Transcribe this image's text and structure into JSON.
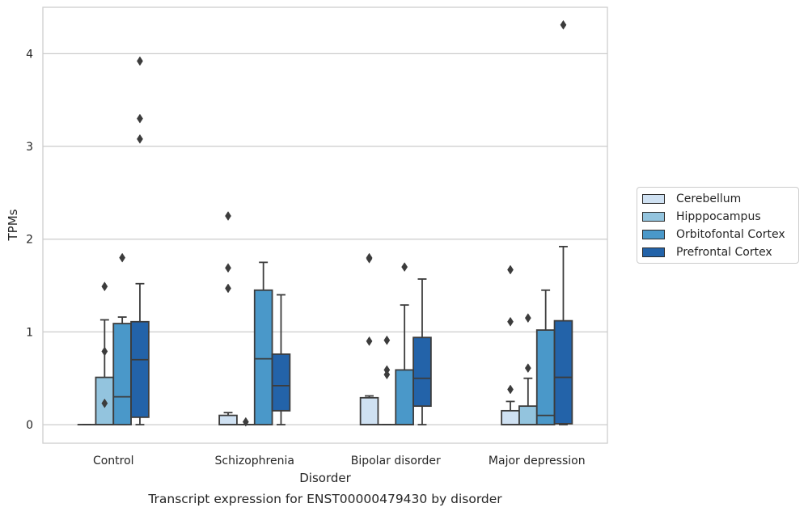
{
  "chart_data": {
    "type": "box",
    "title": "Transcript expression for ENST00000479430 by disorder",
    "xlabel": "Disorder",
    "ylabel": "TPMs",
    "ylim": [
      -0.2,
      4.5
    ],
    "yticks": [
      0,
      1,
      2,
      3,
      4
    ],
    "grid": "horizontal",
    "legend_position": "right",
    "categories": [
      "Control",
      "Schizophrenia",
      "Bipolar disorder",
      "Major depression"
    ],
    "series": [
      {
        "name": "Cerebellum",
        "color": "#cfe1f2",
        "boxes": [
          {
            "q1": 0,
            "median": 0,
            "q3": 0,
            "whisker_low": 0,
            "whisker_high": 0,
            "outliers": []
          },
          {
            "q1": 0,
            "median": 0,
            "q3": 0.1,
            "whisker_low": 0,
            "whisker_high": 0.13,
            "outliers": [
              2.25,
              1.69,
              1.47
            ]
          },
          {
            "q1": 0,
            "median": 0,
            "q3": 0.29,
            "whisker_low": 0,
            "whisker_high": 0.31,
            "outliers": [
              1.8,
              1.79,
              0.9
            ]
          },
          {
            "q1": 0,
            "median": 0,
            "q3": 0.15,
            "whisker_low": 0,
            "whisker_high": 0.25,
            "outliers": [
              1.67,
              1.11,
              0.38
            ]
          }
        ]
      },
      {
        "name": "Hipppocampus",
        "color": "#93c4de",
        "boxes": [
          {
            "q1": 0,
            "median": 0,
            "q3": 0.51,
            "whisker_low": 0,
            "whisker_high": 1.13,
            "outliers": [
              1.49,
              0.79,
              0.23
            ]
          },
          {
            "q1": 0,
            "median": 0,
            "q3": 0,
            "whisker_low": 0,
            "whisker_high": 0,
            "outliers": [
              0.03
            ]
          },
          {
            "q1": 0,
            "median": 0,
            "q3": 0,
            "whisker_low": 0,
            "whisker_high": 0,
            "outliers": [
              0.91,
              0.59,
              0.54
            ]
          },
          {
            "q1": 0,
            "median": 0,
            "q3": 0.2,
            "whisker_low": 0,
            "whisker_high": 0.5,
            "outliers": [
              1.15,
              0.61
            ]
          }
        ]
      },
      {
        "name": "Orbitofontal Cortex",
        "color": "#4a98c9",
        "boxes": [
          {
            "q1": 0,
            "median": 0.3,
            "q3": 1.09,
            "whisker_low": 0,
            "whisker_high": 1.16,
            "outliers": [
              1.8
            ]
          },
          {
            "q1": 0,
            "median": 0.71,
            "q3": 1.45,
            "whisker_low": 0,
            "whisker_high": 1.75,
            "outliers": []
          },
          {
            "q1": 0,
            "median": 0,
            "q3": 0.59,
            "whisker_low": 0,
            "whisker_high": 1.29,
            "outliers": [
              1.7
            ]
          },
          {
            "q1": 0,
            "median": 0.1,
            "q3": 1.02,
            "whisker_low": 0,
            "whisker_high": 1.45,
            "outliers": []
          }
        ]
      },
      {
        "name": "Prefrontal Cortex",
        "color": "#2363a9",
        "boxes": [
          {
            "q1": 0.08,
            "median": 0.7,
            "q3": 1.11,
            "whisker_low": 0,
            "whisker_high": 1.52,
            "outliers": [
              3.92,
              3.3,
              3.08
            ]
          },
          {
            "q1": 0.15,
            "median": 0.42,
            "q3": 0.76,
            "whisker_low": 0,
            "whisker_high": 1.4,
            "outliers": []
          },
          {
            "q1": 0.2,
            "median": 0.5,
            "q3": 0.94,
            "whisker_low": 0,
            "whisker_high": 1.57,
            "outliers": []
          },
          {
            "q1": 0.01,
            "median": 0.51,
            "q3": 1.12,
            "whisker_low": 0,
            "whisker_high": 1.92,
            "outliers": [
              4.31
            ]
          }
        ]
      }
    ]
  }
}
